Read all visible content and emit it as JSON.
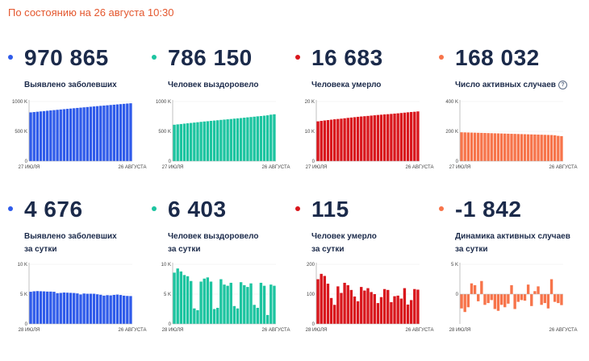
{
  "status_text": "По состоянию на 26 августа 10:30",
  "panels": [
    {
      "value": "970 865",
      "label_lines": [
        "Выявлено заболевших"
      ],
      "info": false,
      "color": "#2f5bea"
    },
    {
      "value": "786 150",
      "label_lines": [
        "Человек выздоровело"
      ],
      "info": false,
      "color": "#1cc4a0"
    },
    {
      "value": "16 683",
      "label_lines": [
        "Человека умерло"
      ],
      "info": false,
      "color": "#d9161c"
    },
    {
      "value": "168 032",
      "label_lines": [
        "Число активных случаев"
      ],
      "info": true,
      "color": "#f7744a"
    },
    {
      "value": "4 676",
      "label_lines": [
        "Выявлено заболевших",
        "за сутки"
      ],
      "info": false,
      "color": "#2f5bea"
    },
    {
      "value": "6 403",
      "label_lines": [
        "Человек выздоровело",
        "за сутки"
      ],
      "info": false,
      "color": "#1cc4a0"
    },
    {
      "value": "115",
      "label_lines": [
        "Человек умерло",
        "за сутки"
      ],
      "info": false,
      "color": "#d9161c"
    },
    {
      "value": "-1 842",
      "label_lines": [
        "Динамика активных случаев",
        "за сутки"
      ],
      "info": false,
      "color": "#f7744a"
    }
  ],
  "info_glyph": "?",
  "chart_data": [
    {
      "type": "bar",
      "color": "#2f5bea",
      "ylim": [
        0,
        1000000
      ],
      "y_ticks": [
        {
          "value": 1000000,
          "label": "1000 K"
        },
        {
          "value": 500000,
          "label": "500 K"
        },
        {
          "value": 0,
          "label": "0"
        }
      ],
      "x_labels": [
        "27 ИЮЛЯ",
        "26 АВГУСТА"
      ],
      "values": [
        818120,
        823515,
        828990,
        834499,
        839981,
        845443,
        850870,
        856264,
        861423,
        866627,
        871894,
        877135,
        882347,
        887536,
        892654,
        897599,
        902701,
        907758,
        912823,
        917884,
        922853,
        927745,
        932493,
        937321,
        942106,
        946976,
        951897,
        956749,
        961493,
        966189,
        970865
      ]
    },
    {
      "type": "bar",
      "color": "#1cc4a0",
      "ylim": [
        0,
        1000000
      ],
      "y_ticks": [
        {
          "value": 1000000,
          "label": "1000 K"
        },
        {
          "value": 500000,
          "label": "500 K"
        },
        {
          "value": 0,
          "label": "0"
        }
      ],
      "x_labels": [
        "27 ИЮЛЯ",
        "26 АВГУСТА"
      ],
      "values": [
        611036,
        617000,
        623000,
        629000,
        635000,
        641000,
        647000,
        653000,
        659000,
        665000,
        670000,
        676000,
        681000,
        686000,
        692000,
        697000,
        702000,
        707000,
        713000,
        718000,
        723000,
        729000,
        735000,
        740000,
        746000,
        752000,
        757000,
        763000,
        769000,
        779747,
        786150
      ]
    },
    {
      "type": "bar",
      "color": "#d9161c",
      "ylim": [
        0,
        20000
      ],
      "y_ticks": [
        {
          "value": 20000,
          "label": "20 K"
        },
        {
          "value": 10000,
          "label": "10 K"
        },
        {
          "value": 0,
          "label": "0"
        }
      ],
      "x_labels": [
        "27 ИЮЛЯ",
        "26 АВГУСТА"
      ],
      "values": [
        13354,
        13504,
        13650,
        13776,
        13908,
        14043,
        14147,
        14251,
        14389,
        14519,
        14633,
        14754,
        14873,
        14985,
        15081,
        15173,
        15283,
        15387,
        15495,
        15585,
        15685,
        15760,
        15853,
        15955,
        16048,
        16156,
        16270,
        16387,
        16489,
        16568,
        16683
      ]
    },
    {
      "type": "bar",
      "color": "#f7744a",
      "ylim": [
        0,
        400000
      ],
      "y_ticks": [
        {
          "value": 400000,
          "label": "400 K"
        },
        {
          "value": 200000,
          "label": "200 K"
        },
        {
          "value": 0,
          "label": "0"
        }
      ],
      "x_labels": [
        "27 ИЮЛЯ",
        "26 АВГУСТА"
      ],
      "values": [
        193700,
        193000,
        192300,
        191700,
        191000,
        190300,
        189700,
        189000,
        188300,
        187600,
        186900,
        186300,
        185600,
        184900,
        184200,
        183500,
        182900,
        182200,
        181500,
        180800,
        180100,
        179400,
        178800,
        178100,
        177400,
        176700,
        176000,
        175300,
        173400,
        169874,
        168032
      ]
    },
    {
      "type": "bar",
      "color": "#2f5bea",
      "ylim": [
        0,
        10000
      ],
      "y_ticks": [
        {
          "value": 10000,
          "label": "10 K"
        },
        {
          "value": 5000,
          "label": "5 K"
        },
        {
          "value": 0,
          "label": "0"
        }
      ],
      "x_labels": [
        "28 ИЮЛЯ",
        "26 АВГУСТА"
      ],
      "values": [
        5395,
        5475,
        5509,
        5482,
        5462,
        5427,
        5427,
        5394,
        5159,
        5204,
        5267,
        5241,
        5212,
        5189,
        5118,
        4945,
        5102,
        5057,
        5065,
        5061,
        4969,
        4892,
        4748,
        4828,
        4785,
        4870,
        4921,
        4852,
        4744,
        4696,
        4676
      ]
    },
    {
      "type": "bar",
      "color": "#1cc4a0",
      "ylim": [
        0,
        10000
      ],
      "y_ticks": [
        {
          "value": 10000,
          "label": "10 K"
        },
        {
          "value": 5000,
          "label": "5 K"
        },
        {
          "value": 0,
          "label": "0"
        }
      ],
      "x_labels": [
        "28 ИЮЛЯ",
        "26 АВГУСТА"
      ],
      "values": [
        8600,
        9300,
        8800,
        8200,
        8000,
        7200,
        2600,
        2300,
        7100,
        7600,
        7800,
        7100,
        2500,
        2700,
        7500,
        6600,
        6400,
        6900,
        3000,
        2600,
        7000,
        6500,
        6200,
        6800,
        3200,
        2700,
        6900,
        6400,
        1500,
        6600,
        6403
      ]
    },
    {
      "type": "bar",
      "color": "#d9161c",
      "ylim": [
        0,
        200
      ],
      "y_ticks": [
        {
          "value": 200,
          "label": "200"
        },
        {
          "value": 100,
          "label": "100"
        },
        {
          "value": 0,
          "label": "0"
        }
      ],
      "x_labels": [
        "28 ИЮЛЯ",
        "26 АВГУСТА"
      ],
      "values": [
        150,
        168,
        161,
        135,
        87,
        64,
        126,
        104,
        138,
        130,
        114,
        92,
        76,
        124,
        112,
        120,
        107,
        100,
        70,
        90,
        117,
        114,
        73,
        93,
        95,
        85,
        120,
        65,
        80,
        117,
        115
      ]
    },
    {
      "type": "bar",
      "color": "#f7744a",
      "ylim": [
        -5000,
        5000
      ],
      "y_ticks": [
        {
          "value": 5000,
          "label": "5 K"
        },
        {
          "value": 0,
          "label": "0"
        }
      ],
      "x_labels": [
        "28 ИЮЛЯ",
        "26 АВГУСТА"
      ],
      "values": [
        -2400,
        -3000,
        -2200,
        1800,
        1500,
        -1200,
        2200,
        -1800,
        -1500,
        -1000,
        -2500,
        -2800,
        -1800,
        -2200,
        -1600,
        1500,
        -2500,
        -1300,
        -1000,
        -1100,
        1600,
        -2000,
        500,
        1300,
        -1800,
        -1500,
        -2400,
        2500,
        -1300,
        -1500,
        -1842
      ]
    }
  ]
}
